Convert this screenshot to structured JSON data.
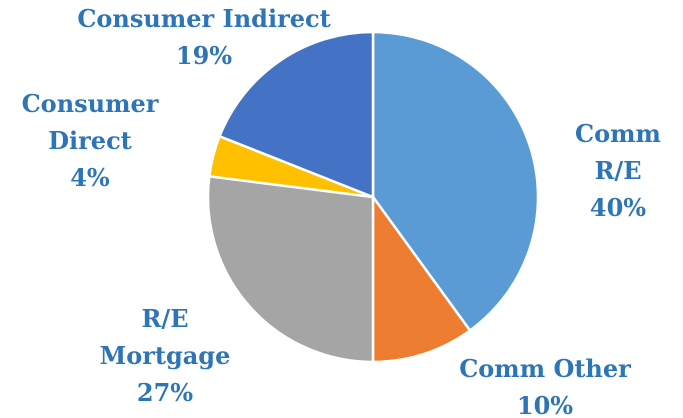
{
  "chart_data": {
    "type": "pie",
    "categories": [
      "Comm R/E",
      "Comm Other",
      "R/E Mortgage",
      "Consumer Direct",
      "Consumer Indirect"
    ],
    "values": [
      40,
      10,
      27,
      4,
      19
    ],
    "value_labels": [
      "40%",
      "10%",
      "27%",
      "4%",
      "19%"
    ],
    "colors": [
      "#5B9BD5",
      "#ED7D31",
      "#A5A5A5",
      "#FFC000",
      "#4472C4"
    ]
  }
}
